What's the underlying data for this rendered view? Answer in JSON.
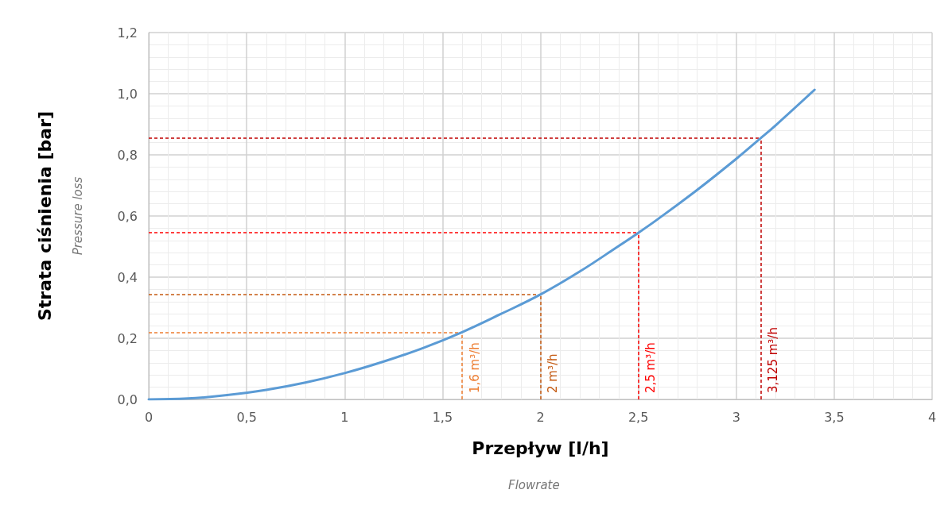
{
  "chart_data": {
    "type": "line",
    "xlabel": "Przepływ [l/h]",
    "ylabel": "Strata ciśnienia [bar]",
    "annotations": [
      "Flowrate",
      "Pressure loss"
    ],
    "series": [
      {
        "color": "#5b9bd5",
        "x": [
          0,
          0.2,
          0.4,
          0.6,
          0.8,
          1,
          1.2,
          1.4,
          1.6,
          1.8,
          2,
          2.2,
          2.4,
          2.5,
          2.6,
          2.8,
          3,
          3.125,
          3.2,
          3.4
        ],
        "values": [
          0,
          0.003,
          0.014,
          0.031,
          0.055,
          0.086,
          0.124,
          0.168,
          0.22,
          0.28,
          0.343,
          0.418,
          0.502,
          0.545,
          0.59,
          0.685,
          0.787,
          0.855,
          0.896,
          1.013
        ]
      }
    ],
    "xlim": [
      0,
      4
    ],
    "xticks": [
      0,
      {
        "value": 0.5,
        "label": "0,5"
      },
      1,
      {
        "value": 1.5,
        "label": "1,5"
      },
      2,
      {
        "value": 2.5,
        "label": "2,5"
      },
      3,
      {
        "value": 3.5,
        "label": "3,5"
      },
      4
    ],
    "ylim": [
      0,
      1.2
    ],
    "yticks": [
      {
        "value": 0,
        "label": "0,0"
      },
      {
        "value": 0.2,
        "label": "0,2"
      },
      {
        "value": 0.4,
        "label": "0,4"
      },
      {
        "value": 0.6,
        "label": "0,6"
      },
      {
        "value": 0.8,
        "label": "0,8"
      },
      {
        "value": 1.0,
        "label": "1,0"
      },
      {
        "value": 1.2,
        "label": "1,2"
      }
    ],
    "ref_lines": [
      {
        "axis": "x",
        "value": 1.6,
        "label": "1,6 m³/h",
        "color": "#ed7d31",
        "line_style": "dashed"
      },
      {
        "axis": "y",
        "value": 0.22,
        "color": "#ed7d31",
        "line_style": "dashed"
      },
      {
        "axis": "x",
        "value": 2,
        "label": "2 m³/h",
        "color": "#c55a11",
        "line_style": "dashed"
      },
      {
        "axis": "y",
        "value": 0.343,
        "color": "#c55a11",
        "line_style": "dashed"
      },
      {
        "axis": "x",
        "value": 2.5,
        "label": "2,5 m³/h",
        "color": "#ff0000",
        "line_style": "dashed"
      },
      {
        "axis": "y",
        "value": 0.545,
        "color": "#ff0000",
        "line_style": "dashed"
      },
      {
        "axis": "x",
        "value": 3.125,
        "label": "3,125 m³/h",
        "color": "#c00000",
        "line_style": "dashed"
      },
      {
        "axis": "y",
        "value": 0.855,
        "color": "#c00000",
        "line_style": "dashed"
      }
    ],
    "grid": true,
    "marker": "none",
    "line_style": "solid"
  }
}
